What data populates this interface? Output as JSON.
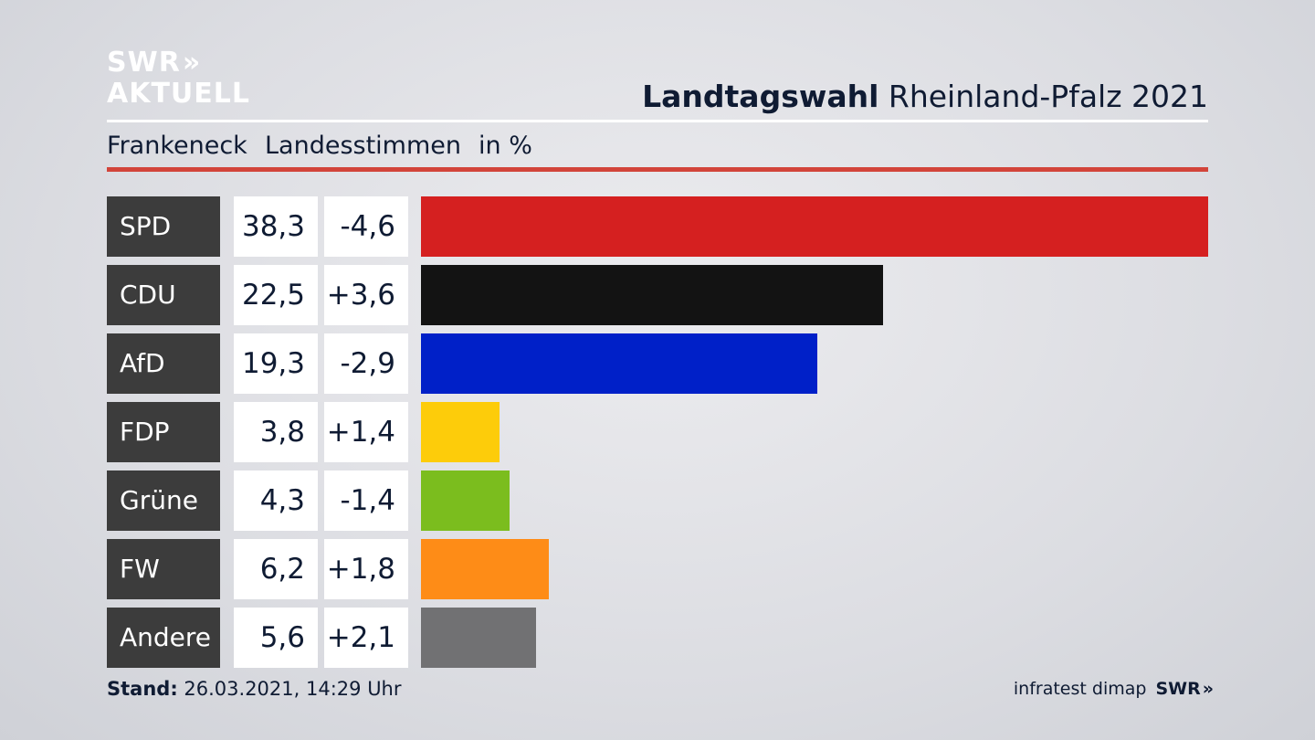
{
  "logo": {
    "line1": "SWR",
    "line1_mark": "»",
    "line2": "AKTUELL"
  },
  "title": {
    "bold": "Landtagswahl",
    "regular": "Rheinland-Pfalz 2021"
  },
  "subtitle": {
    "place": "Frankeneck",
    "measure": "Landesstimmen",
    "unit": "in %"
  },
  "footer": {
    "stand_label": "Stand:",
    "stand_value": "26.03.2021, 14:29 Uhr",
    "source": "infratest dimap",
    "brand": "SWR",
    "brand_mark": "»"
  },
  "chart_data": {
    "type": "bar",
    "orientation": "horizontal",
    "title": "Landtagswahl Rheinland-Pfalz 2021",
    "categories": [
      "SPD",
      "CDU",
      "AfD",
      "FDP",
      "Grüne",
      "FW",
      "Andere"
    ],
    "values": [
      38.3,
      22.5,
      19.3,
      3.8,
      4.3,
      6.2,
      5.6
    ],
    "value_labels": [
      "38,3",
      "22,5",
      "19,3",
      "3,8",
      "4,3",
      "6,2",
      "5,6"
    ],
    "diff_labels": [
      "-4,6",
      "+3,6",
      "-2,9",
      "+1,4",
      "-1,4",
      "+1,8",
      "+2,1"
    ],
    "colors": [
      "#d52020",
      "#131313",
      "#0020c8",
      "#fdcc0a",
      "#7bbd1e",
      "#fe8c17",
      "#717173"
    ],
    "max_value": 38.3
  }
}
